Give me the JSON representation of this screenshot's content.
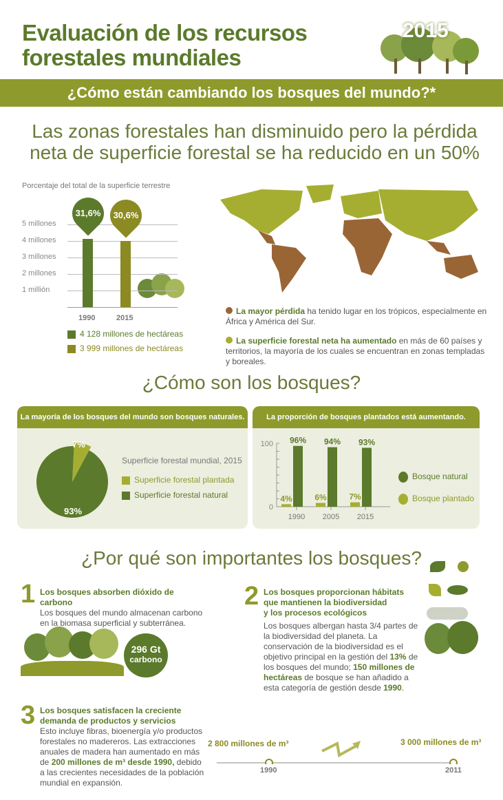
{
  "header": {
    "title_line1": "Evaluación de los recursos",
    "title_line2": "forestales mundiales",
    "year": "2015",
    "banner": "¿Cómo están cambiando los bosques del mundo?*"
  },
  "headline": {
    "line1": "Las zonas forestales han disminuido pero la pérdida",
    "line2": "neta de superficie forestal se ha reducido en un 50%"
  },
  "colors": {
    "dark_green": "#5b7a2b",
    "olive": "#8c8a22",
    "banner": "#8e9a2b",
    "panel_bg": "#eceee0",
    "loss_brown": "#9a6535",
    "gain_lime": "#a6ae32"
  },
  "chart_data": [
    {
      "type": "bar",
      "title": "Porcentaje del total de la superficie terrestre",
      "categories": [
        "1990",
        "2015"
      ],
      "values": [
        4128,
        3999
      ],
      "unit": "millones de hectáreas",
      "yticks": [
        "1 millión",
        "2 millones",
        "3 millones",
        "4 millones",
        "5 millones"
      ],
      "ylim": [
        0,
        5000
      ],
      "data_labels": [
        "31,6%",
        "30,6%"
      ],
      "legend": [
        "4 128 millones de hectáreas",
        "3 999 millones de hectáreas"
      ]
    },
    {
      "type": "pie",
      "title": "Superficie forestal mundial, 2015",
      "slices": [
        {
          "name": "Superficie forestal plantada",
          "value": 7,
          "label": "7%"
        },
        {
          "name": "Superficie forestal natural",
          "value": 93,
          "label": "93%"
        }
      ]
    },
    {
      "type": "bar",
      "categories": [
        "1990",
        "2005",
        "2015"
      ],
      "ylim": [
        0,
        100
      ],
      "yticks": [
        "0",
        "100"
      ],
      "series": [
        {
          "name": "Bosque plantado",
          "values": [
            4,
            6,
            7
          ],
          "labels": [
            "4%",
            "6%",
            "7%"
          ]
        },
        {
          "name": "Bosque natural",
          "values": [
            96,
            94,
            93
          ],
          "labels": [
            "96%",
            "94%",
            "93%"
          ]
        }
      ]
    }
  ],
  "map_notes": [
    {
      "bold": "La mayor pérdida",
      "text": " ha tenido lugar en los trópicos, especialmente en África y América del Sur."
    },
    {
      "bold": "La superficie forestal neta ha aumentado",
      "text": " en más de 60 países y territorios, la mayoría de los cuales se encuentran en zonas templadas y boreales."
    }
  ],
  "section2": {
    "title": "¿Cómo son los bosques?",
    "panel1_head": "La mayoría de los bosques del mundo son bosques naturales.",
    "panel2_head": "La proporción de bosques plantados está aumentando."
  },
  "section3": {
    "title": "¿Por qué son importantes los bosques?",
    "item1": {
      "num": "1",
      "title": "Los bosques absorben dióxido de carbono",
      "text": "Los bosques del mundo almacenan carbono en la biomasa superficial y subterránea.",
      "badge1": "296 Gt",
      "badge2": "carbono"
    },
    "item2": {
      "num": "2",
      "title1": "Los bosques proporcionan hábitats",
      "title2": "que mantienen la biodiversidad",
      "title3": "y los procesos ecológicos",
      "t1": "Los bosques albergan hasta 3/4 partes de la biodiversidad del planeta. La conservación de la biodiversidad es el objetivo principal en la gestión del ",
      "b1": "13%",
      "t2": " de los bosques del mundo; ",
      "b2": "150 millones de hectáreas",
      "t3": " de bosque se han añadido a esta categoría de gestión desde ",
      "b3": "1990",
      "t4": "."
    },
    "item3": {
      "num": "3",
      "title1": "Los bosques satisfacen la creciente",
      "title2": "demanda de productos y servicios",
      "t1": "Esto incluye fibras, bioenergía y/o productos forestales no madereros. Las extracciones anuales de madera han aumentado en más de ",
      "b1": "200 millones de m³ desde 1990,",
      "t2": " debido a las crecientes necesidades de la población mundial en expansión."
    },
    "timeline": {
      "start_value": "2 800 millones de m³",
      "start_year": "1990",
      "end_value": "3 000 millones de m³",
      "end_year": "2011"
    }
  }
}
